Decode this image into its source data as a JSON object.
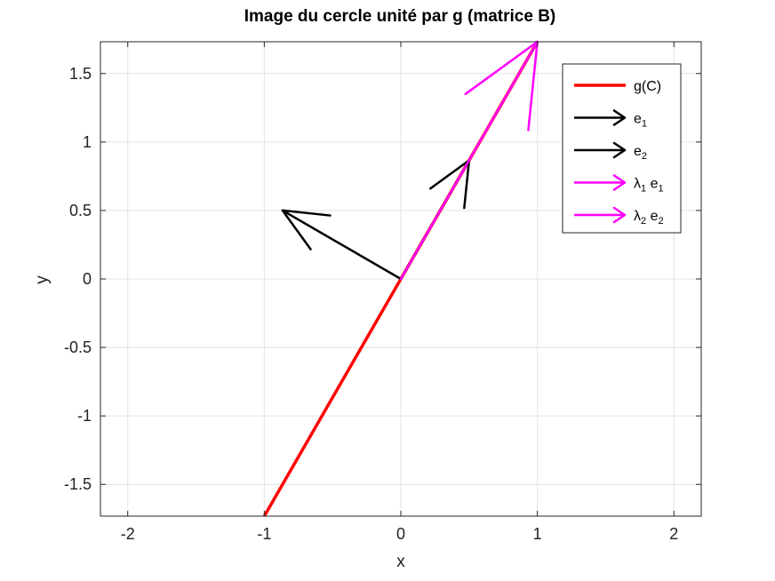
{
  "chart_data": {
    "type": "line",
    "title": "Image du cercle unité par g (matrice B)",
    "xlabel": "x",
    "ylabel": "y",
    "xlim": [
      -2.2,
      2.2
    ],
    "ylim": [
      -1.732,
      1.732
    ],
    "xticks": [
      -2,
      -1,
      0,
      1,
      2
    ],
    "xtick_labels": [
      "-2",
      "-1",
      "0",
      "1",
      "2"
    ],
    "yticks": [
      -1.5,
      -1,
      -0.5,
      0,
      0.5,
      1,
      1.5
    ],
    "ytick_labels": [
      "-1.5",
      "-1",
      "-0.5",
      "0",
      "0.5",
      "1",
      "1.5"
    ],
    "grid": true,
    "legend_position": "top-right",
    "series": [
      {
        "name": "g(C)",
        "kind": "line",
        "color": "#ff0000",
        "x": [
          -1,
          1
        ],
        "y": [
          -1.732,
          1.732
        ]
      },
      {
        "name": "e1",
        "legend_main": "e",
        "legend_sub": "1",
        "kind": "arrow",
        "color": "#000000",
        "x": [
          0,
          0.5
        ],
        "y": [
          0,
          0.866
        ]
      },
      {
        "name": "e2",
        "legend_main": "e",
        "legend_sub": "2",
        "kind": "arrow",
        "color": "#000000",
        "x": [
          0,
          -0.866
        ],
        "y": [
          0,
          0.5
        ]
      },
      {
        "name": "λ1 e1",
        "legend_main": "λ",
        "legend_sub": "1",
        "legend_tail": " e",
        "legend_sub2": "1",
        "kind": "arrow",
        "color": "#ff00ff",
        "x": [
          0,
          1
        ],
        "y": [
          0,
          1.732
        ]
      },
      {
        "name": "λ2 e2",
        "legend_main": "λ",
        "legend_sub": "2",
        "legend_tail": " e",
        "legend_sub2": "2",
        "kind": "arrow",
        "color": "#ff00ff",
        "x": [
          0,
          0
        ],
        "y": [
          0,
          0
        ]
      }
    ]
  }
}
